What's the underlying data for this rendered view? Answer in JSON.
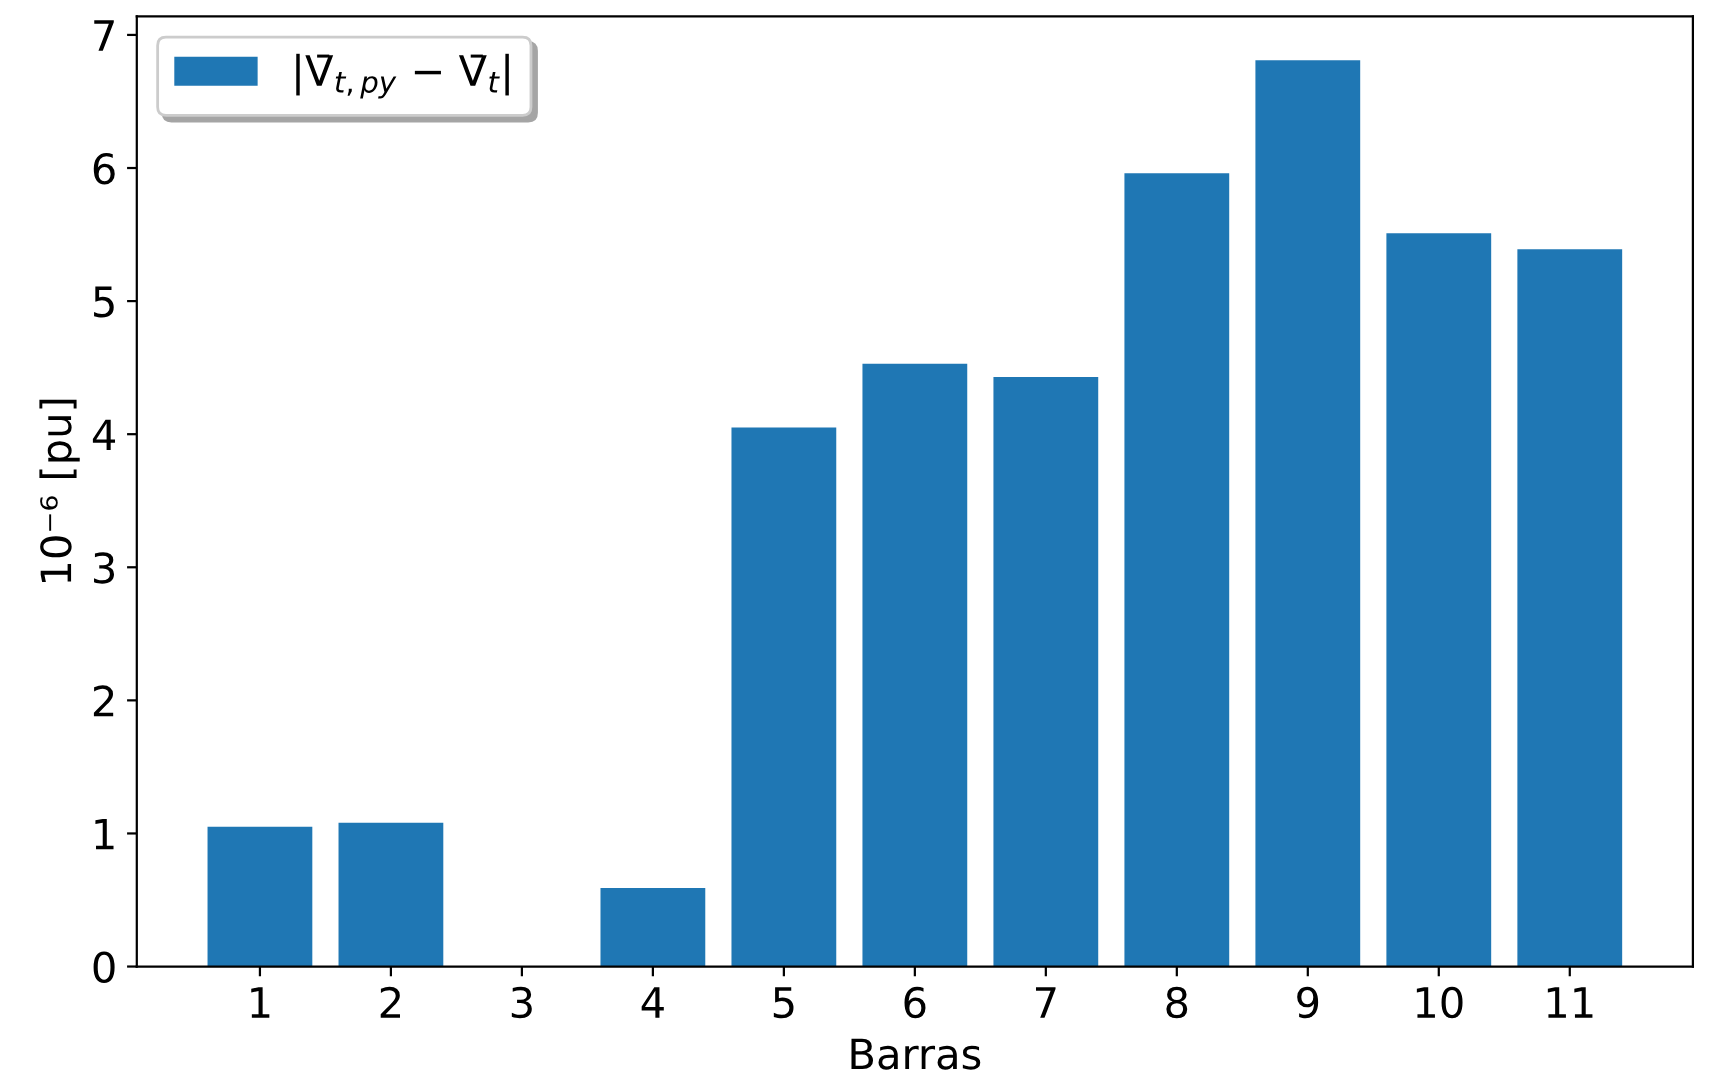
{
  "chart_data": {
    "type": "bar",
    "xlabel": "Barras",
    "ylabel": "10⁻⁶ [pu]",
    "categories": [
      "1",
      "2",
      "3",
      "4",
      "5",
      "6",
      "7",
      "8",
      "9",
      "10",
      "11"
    ],
    "series": [
      {
        "name": "|V̄$_{t,py}$ − V̄$_{t}$|",
        "color": "#1f77b4",
        "values": [
          1.05,
          1.08,
          0,
          0.59,
          4.05,
          4.53,
          4.43,
          5.96,
          6.81,
          5.51,
          5.39
        ]
      }
    ],
    "ylim": [
      0,
      7.14
    ],
    "yticks": [
      0,
      1,
      2,
      3,
      4,
      5,
      6,
      7
    ],
    "grid": false,
    "legend": "top left"
  }
}
